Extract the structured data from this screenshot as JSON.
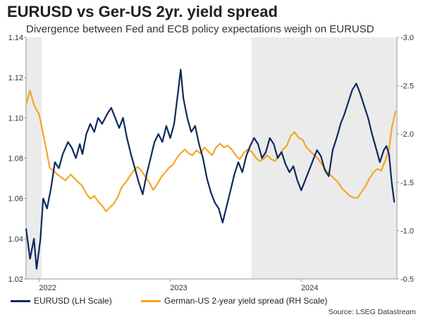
{
  "title": "EURUSD vs Ger-US 2yr. yield spread",
  "subtitle": "Divergence between Fed and ECB policy expectations weigh on EURUSD",
  "source": "Source: LSEG Datastream",
  "colors": {
    "eurusd": "#0d2a5c",
    "spread": "#f5a623",
    "shade": "#ebebeb"
  },
  "chart_data": {
    "type": "line",
    "x_range": [
      2021.9,
      2024.73
    ],
    "x_ticks": [
      {
        "value": 2022,
        "label": "2022"
      },
      {
        "value": 2023,
        "label": "2023"
      },
      {
        "value": 2024,
        "label": "2024"
      }
    ],
    "left_axis": {
      "range": [
        1.02,
        1.14
      ],
      "ticks": [
        "1.02",
        "1.04",
        "1.06",
        "1.08",
        "1.10",
        "1.12",
        "1.14"
      ]
    },
    "right_axis": {
      "range": [
        -3.0,
        -0.5
      ],
      "ticks": [
        "-0.5",
        "-1.0",
        "-1.5",
        "-2.0",
        "-2.5",
        "-3.0"
      ]
    },
    "shaded_regions": [
      [
        2021.9,
        2022.02
      ],
      [
        2023.62,
        2024.73
      ]
    ],
    "series": [
      {
        "name": "EURUSD (LH Scale)",
        "axis": "left",
        "points": [
          [
            2021.9,
            1.045
          ],
          [
            2021.93,
            1.03
          ],
          [
            2021.96,
            1.04
          ],
          [
            2021.98,
            1.025
          ],
          [
            2022.01,
            1.04
          ],
          [
            2022.03,
            1.06
          ],
          [
            2022.06,
            1.055
          ],
          [
            2022.09,
            1.065
          ],
          [
            2022.12,
            1.078
          ],
          [
            2022.15,
            1.075
          ],
          [
            2022.18,
            1.082
          ],
          [
            2022.22,
            1.088
          ],
          [
            2022.25,
            1.085
          ],
          [
            2022.28,
            1.08
          ],
          [
            2022.31,
            1.087
          ],
          [
            2022.33,
            1.082
          ],
          [
            2022.36,
            1.092
          ],
          [
            2022.39,
            1.097
          ],
          [
            2022.42,
            1.093
          ],
          [
            2022.45,
            1.1
          ],
          [
            2022.48,
            1.097
          ],
          [
            2022.52,
            1.102
          ],
          [
            2022.55,
            1.105
          ],
          [
            2022.58,
            1.1
          ],
          [
            2022.61,
            1.095
          ],
          [
            2022.64,
            1.1
          ],
          [
            2022.67,
            1.09
          ],
          [
            2022.7,
            1.082
          ],
          [
            2022.73,
            1.075
          ],
          [
            2022.76,
            1.068
          ],
          [
            2022.79,
            1.062
          ],
          [
            2022.82,
            1.072
          ],
          [
            2022.85,
            1.08
          ],
          [
            2022.88,
            1.088
          ],
          [
            2022.91,
            1.092
          ],
          [
            2022.94,
            1.088
          ],
          [
            2022.97,
            1.096
          ],
          [
            2023.0,
            1.09
          ],
          [
            2023.03,
            1.097
          ],
          [
            2023.06,
            1.113
          ],
          [
            2023.08,
            1.124
          ],
          [
            2023.1,
            1.11
          ],
          [
            2023.13,
            1.1
          ],
          [
            2023.16,
            1.093
          ],
          [
            2023.19,
            1.096
          ],
          [
            2023.22,
            1.087
          ],
          [
            2023.25,
            1.08
          ],
          [
            2023.28,
            1.07
          ],
          [
            2023.31,
            1.063
          ],
          [
            2023.34,
            1.058
          ],
          [
            2023.37,
            1.055
          ],
          [
            2023.4,
            1.048
          ],
          [
            2023.43,
            1.056
          ],
          [
            2023.46,
            1.064
          ],
          [
            2023.49,
            1.072
          ],
          [
            2023.52,
            1.078
          ],
          [
            2023.55,
            1.073
          ],
          [
            2023.58,
            1.081
          ],
          [
            2023.61,
            1.086
          ],
          [
            2023.64,
            1.09
          ],
          [
            2023.67,
            1.087
          ],
          [
            2023.7,
            1.08
          ],
          [
            2023.73,
            1.083
          ],
          [
            2023.76,
            1.09
          ],
          [
            2023.79,
            1.087
          ],
          [
            2023.82,
            1.08
          ],
          [
            2023.85,
            1.083
          ],
          [
            2023.88,
            1.077
          ],
          [
            2023.91,
            1.073
          ],
          [
            2023.94,
            1.076
          ],
          [
            2023.97,
            1.069
          ],
          [
            2024.0,
            1.064
          ],
          [
            2024.03,
            1.069
          ],
          [
            2024.06,
            1.074
          ],
          [
            2024.09,
            1.079
          ],
          [
            2024.12,
            1.084
          ],
          [
            2024.15,
            1.081
          ],
          [
            2024.18,
            1.074
          ],
          [
            2024.21,
            1.071
          ],
          [
            2024.24,
            1.084
          ],
          [
            2024.27,
            1.09
          ],
          [
            2024.3,
            1.097
          ],
          [
            2024.33,
            1.102
          ],
          [
            2024.36,
            1.108
          ],
          [
            2024.39,
            1.114
          ],
          [
            2024.42,
            1.117
          ],
          [
            2024.45,
            1.112
          ],
          [
            2024.48,
            1.106
          ],
          [
            2024.51,
            1.1
          ],
          [
            2024.54,
            1.092
          ],
          [
            2024.57,
            1.085
          ],
          [
            2024.6,
            1.078
          ],
          [
            2024.63,
            1.084
          ],
          [
            2024.65,
            1.086
          ],
          [
            2024.67,
            1.082
          ],
          [
            2024.69,
            1.068
          ],
          [
            2024.71,
            1.058
          ]
        ]
      },
      {
        "name": "German-US 2-year yield spread (RH Scale)",
        "axis": "right",
        "points": [
          [
            2021.9,
            -2.3
          ],
          [
            2021.93,
            -2.45
          ],
          [
            2021.96,
            -2.3
          ],
          [
            2022.0,
            -2.2
          ],
          [
            2022.03,
            -2.0
          ],
          [
            2022.06,
            -1.8
          ],
          [
            2022.08,
            -1.65
          ],
          [
            2022.11,
            -1.62
          ],
          [
            2022.14,
            -1.58
          ],
          [
            2022.17,
            -1.55
          ],
          [
            2022.2,
            -1.52
          ],
          [
            2022.24,
            -1.58
          ],
          [
            2022.27,
            -1.54
          ],
          [
            2022.3,
            -1.5
          ],
          [
            2022.33,
            -1.46
          ],
          [
            2022.36,
            -1.38
          ],
          [
            2022.39,
            -1.33
          ],
          [
            2022.42,
            -1.36
          ],
          [
            2022.45,
            -1.3
          ],
          [
            2022.48,
            -1.26
          ],
          [
            2022.51,
            -1.2
          ],
          [
            2022.54,
            -1.24
          ],
          [
            2022.57,
            -1.28
          ],
          [
            2022.6,
            -1.35
          ],
          [
            2022.63,
            -1.45
          ],
          [
            2022.66,
            -1.5
          ],
          [
            2022.69,
            -1.56
          ],
          [
            2022.72,
            -1.62
          ],
          [
            2022.75,
            -1.66
          ],
          [
            2022.78,
            -1.62
          ],
          [
            2022.81,
            -1.56
          ],
          [
            2022.84,
            -1.5
          ],
          [
            2022.87,
            -1.42
          ],
          [
            2022.9,
            -1.48
          ],
          [
            2022.93,
            -1.55
          ],
          [
            2022.96,
            -1.6
          ],
          [
            2022.99,
            -1.65
          ],
          [
            2023.02,
            -1.68
          ],
          [
            2023.05,
            -1.75
          ],
          [
            2023.08,
            -1.8
          ],
          [
            2023.11,
            -1.84
          ],
          [
            2023.14,
            -1.8
          ],
          [
            2023.17,
            -1.78
          ],
          [
            2023.2,
            -1.83
          ],
          [
            2023.23,
            -1.8
          ],
          [
            2023.26,
            -1.86
          ],
          [
            2023.29,
            -1.82
          ],
          [
            2023.32,
            -1.78
          ],
          [
            2023.35,
            -1.86
          ],
          [
            2023.38,
            -1.9
          ],
          [
            2023.41,
            -1.86
          ],
          [
            2023.44,
            -1.88
          ],
          [
            2023.47,
            -1.84
          ],
          [
            2023.5,
            -1.78
          ],
          [
            2023.53,
            -1.74
          ],
          [
            2023.56,
            -1.8
          ],
          [
            2023.59,
            -1.84
          ],
          [
            2023.62,
            -1.82
          ],
          [
            2023.65,
            -1.76
          ],
          [
            2023.68,
            -1.72
          ],
          [
            2023.71,
            -1.74
          ],
          [
            2023.74,
            -1.78
          ],
          [
            2023.77,
            -1.74
          ],
          [
            2023.8,
            -1.72
          ],
          [
            2023.83,
            -1.78
          ],
          [
            2023.86,
            -1.84
          ],
          [
            2023.89,
            -1.88
          ],
          [
            2023.92,
            -1.98
          ],
          [
            2023.95,
            -2.02
          ],
          [
            2023.98,
            -1.96
          ],
          [
            2024.01,
            -1.94
          ],
          [
            2024.04,
            -1.86
          ],
          [
            2024.07,
            -1.82
          ],
          [
            2024.1,
            -1.78
          ],
          [
            2024.13,
            -1.74
          ],
          [
            2024.16,
            -1.68
          ],
          [
            2024.19,
            -1.62
          ],
          [
            2024.22,
            -1.58
          ],
          [
            2024.25,
            -1.54
          ],
          [
            2024.28,
            -1.5
          ],
          [
            2024.31,
            -1.44
          ],
          [
            2024.34,
            -1.4
          ],
          [
            2024.37,
            -1.36
          ],
          [
            2024.4,
            -1.34
          ],
          [
            2024.43,
            -1.34
          ],
          [
            2024.46,
            -1.4
          ],
          [
            2024.49,
            -1.46
          ],
          [
            2024.52,
            -1.54
          ],
          [
            2024.55,
            -1.6
          ],
          [
            2024.58,
            -1.64
          ],
          [
            2024.61,
            -1.62
          ],
          [
            2024.64,
            -1.72
          ],
          [
            2024.67,
            -1.84
          ],
          [
            2024.69,
            -2.06
          ],
          [
            2024.71,
            -2.18
          ],
          [
            2024.72,
            -2.24
          ]
        ]
      }
    ]
  }
}
